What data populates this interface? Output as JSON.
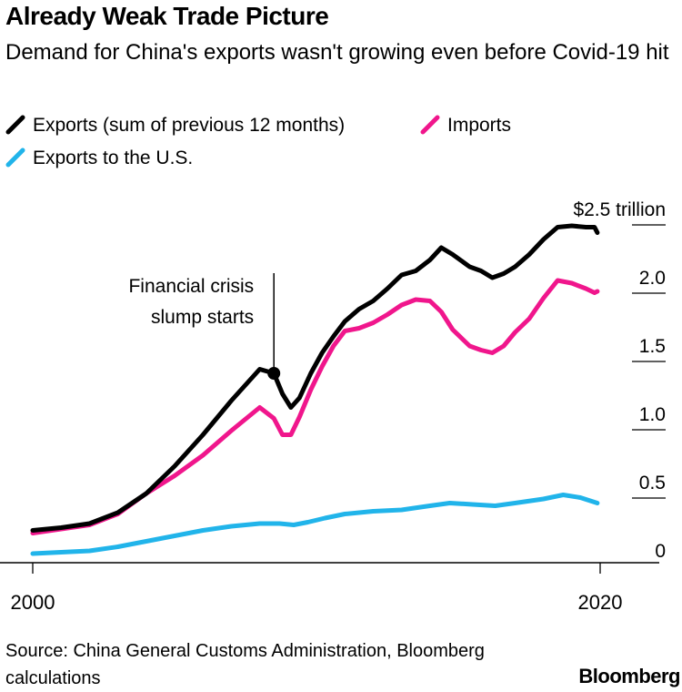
{
  "title": "Already Weak Trade Picture",
  "subtitle": "Demand for China's exports wasn't growing even before Covid-19 hit",
  "brand": "Bloomberg",
  "source": "Source: China General Customs Administration, Bloomberg calculations",
  "colors": {
    "exports": "#000000",
    "imports": "#f0168c",
    "exports_us": "#21b4ea"
  },
  "chart_data": {
    "type": "line",
    "title": "Already Weak Trade Picture",
    "xlabel": "",
    "ylabel": "$ trillion",
    "xlim": [
      2000,
      2021.3
    ],
    "ylim": [
      0,
      2.5
    ],
    "x_ticks": [
      "2000",
      "2020"
    ],
    "x_tick_values": [
      2000,
      2020
    ],
    "y_ticks": [
      "0",
      "0.5",
      "1.0",
      "1.5",
      "2.0",
      "$2.5 trillion"
    ],
    "y_tick_values": [
      0,
      0.5,
      1.0,
      1.5,
      2.0,
      2.5
    ],
    "series": [
      {
        "name": "Exports (sum of previous 12 months)",
        "color": "#000000",
        "x": [
          2000,
          2001,
          2002,
          2003,
          2004,
          2005,
          2006,
          2007,
          2008,
          2008.5,
          2008.8,
          2009.1,
          2009.4,
          2009.8,
          2010.2,
          2010.6,
          2011,
          2011.5,
          2012,
          2012.5,
          2013,
          2013.5,
          2014,
          2014.4,
          2014.8,
          2015.4,
          2015.8,
          2016.2,
          2016.6,
          2017,
          2017.5,
          2018,
          2018.5,
          2019,
          2019.5,
          2019.8,
          2019.9
        ],
        "values": [
          0.25,
          0.27,
          0.3,
          0.38,
          0.52,
          0.72,
          0.95,
          1.2,
          1.43,
          1.4,
          1.25,
          1.15,
          1.22,
          1.4,
          1.55,
          1.67,
          1.78,
          1.87,
          1.93,
          2.02,
          2.12,
          2.15,
          2.23,
          2.32,
          2.27,
          2.18,
          2.15,
          2.1,
          2.13,
          2.18,
          2.27,
          2.38,
          2.47,
          2.48,
          2.47,
          2.47,
          2.43
        ]
      },
      {
        "name": "Imports",
        "color": "#f0168c",
        "x": [
          2000,
          2001,
          2002,
          2003,
          2004,
          2005,
          2006,
          2007,
          2008,
          2008.5,
          2008.8,
          2009.1,
          2009.4,
          2009.8,
          2010.2,
          2010.6,
          2011,
          2011.5,
          2012,
          2012.5,
          2013,
          2013.5,
          2014,
          2014.4,
          2014.8,
          2015.4,
          2015.8,
          2016.2,
          2016.6,
          2017,
          2017.5,
          2018,
          2018.5,
          2019,
          2019.5,
          2019.8,
          2019.9
        ],
        "values": [
          0.23,
          0.26,
          0.29,
          0.37,
          0.52,
          0.65,
          0.8,
          0.98,
          1.15,
          1.07,
          0.95,
          0.95,
          1.08,
          1.28,
          1.45,
          1.6,
          1.71,
          1.73,
          1.77,
          1.83,
          1.9,
          1.94,
          1.93,
          1.85,
          1.72,
          1.6,
          1.57,
          1.55,
          1.6,
          1.7,
          1.8,
          1.95,
          2.08,
          2.06,
          2.02,
          1.99,
          2.0
        ]
      },
      {
        "name": "Exports to the U.S.",
        "color": "#21b4ea",
        "x": [
          2000,
          2001,
          2002,
          2003,
          2004,
          2005,
          2006,
          2007,
          2008,
          2008.7,
          2009.2,
          2009.7,
          2010.3,
          2011,
          2012,
          2013,
          2014,
          2014.7,
          2015.5,
          2016.3,
          2017,
          2018,
          2018.7,
          2019.3,
          2019.9
        ],
        "values": [
          0.08,
          0.09,
          0.1,
          0.13,
          0.17,
          0.21,
          0.25,
          0.28,
          0.3,
          0.3,
          0.29,
          0.31,
          0.34,
          0.37,
          0.39,
          0.4,
          0.43,
          0.45,
          0.44,
          0.43,
          0.45,
          0.48,
          0.51,
          0.49,
          0.45
        ]
      }
    ],
    "annotations": [
      {
        "text_lines": [
          "Financial crisis",
          "slump starts"
        ],
        "x": 2008.5,
        "y": 1.4
      }
    ]
  },
  "legend": {
    "items": [
      {
        "label": "Exports (sum of previous 12 months)",
        "color": "#000000"
      },
      {
        "label": "Imports",
        "color": "#f0168c"
      },
      {
        "label": "Exports to the U.S.",
        "color": "#21b4ea"
      }
    ]
  }
}
